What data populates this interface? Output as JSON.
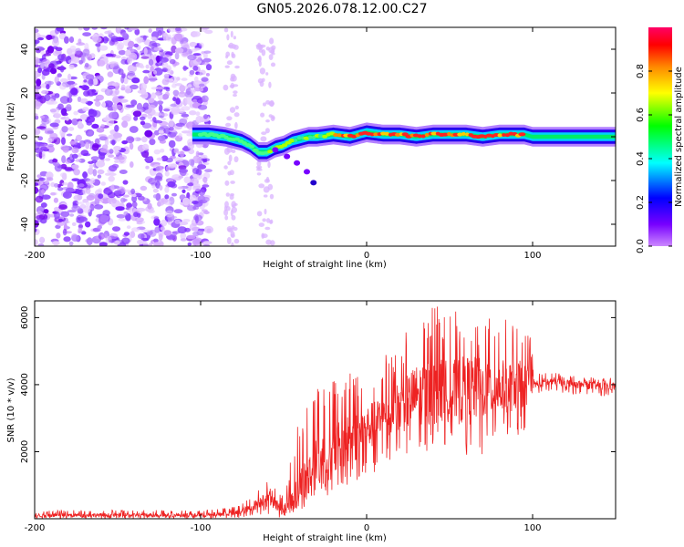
{
  "figure_title": "GN05.2026.078.12.00.C27",
  "chart_data": [
    {
      "type": "heatmap",
      "title": "GN05.2026.078.12.00.C27",
      "xlabel": "Height of straight line (km)",
      "ylabel": "Frequency (Hz)",
      "xlim": [
        -200,
        150
      ],
      "ylim": [
        -50,
        50
      ],
      "xticks": [
        -200,
        -100,
        0,
        100
      ],
      "xtick_labels": [
        "-200",
        "-100",
        "0",
        "100"
      ],
      "yticks": [
        -40,
        -20,
        0,
        20,
        40
      ],
      "ytick_labels": [
        "-40",
        "-20",
        "0",
        "20",
        "40"
      ],
      "grid": false,
      "colorbar": {
        "label": "Normalized spectral amplitude",
        "range": [
          0,
          1
        ],
        "ticks": [
          0.0,
          0.2,
          0.4,
          0.6,
          0.8
        ],
        "tick_labels": [
          "0.0",
          "0.2",
          "0.4",
          "0.6",
          "0.8"
        ],
        "colormap": "hsv-reversed",
        "colors": [
          "#cc88ff",
          "#7700ff",
          "#0000ff",
          "#00ffff",
          "#00ff00",
          "#ffff00",
          "#ff8800",
          "#ff0000",
          "#ff0066"
        ]
      },
      "ridge": {
        "description": "dominant frequency track",
        "x": [
          -105,
          -95,
          -85,
          -75,
          -70,
          -65,
          -60,
          -55,
          -50,
          -45,
          -40,
          -35,
          -30,
          -20,
          -10,
          0,
          10,
          20,
          30,
          40,
          50,
          60,
          70,
          80,
          90,
          95,
          100,
          150
        ],
        "y": [
          1,
          1,
          0,
          -2,
          -4,
          -7,
          -7,
          -5,
          -4,
          -2,
          -1,
          0,
          0,
          1,
          0,
          2,
          1,
          1,
          0,
          1,
          1,
          1,
          0,
          1,
          1,
          1,
          0,
          0
        ]
      },
      "noise_region_x": [
        -200,
        -95
      ]
    },
    {
      "type": "line",
      "title": "",
      "xlabel": "Height of straight line (km)",
      "ylabel": "SNR (10 * v/v)",
      "xlim": [
        -200,
        150
      ],
      "ylim": [
        0,
        6500
      ],
      "xticks": [
        -200,
        -100,
        0,
        100
      ],
      "xtick_labels": [
        "-200",
        "-100",
        "0",
        "100"
      ],
      "yticks": [
        2000,
        4000,
        6000
      ],
      "ytick_labels": [
        "2000",
        "4000",
        "6000"
      ],
      "grid": false,
      "series": [
        {
          "name": "SNR",
          "color": "#ee2222",
          "envelope": {
            "x": [
              -200,
              -150,
              -100,
              -80,
              -70,
              -60,
              -55,
              -50,
              -40,
              -30,
              -20,
              -10,
              0,
              10,
              20,
              30,
              40,
              50,
              60,
              70,
              80,
              90,
              99,
              101,
              110,
              120,
              130,
              140,
              150
            ],
            "mean": [
              100,
              110,
              110,
              160,
              300,
              700,
              450,
              250,
              900,
              1600,
              2000,
              2300,
              2700,
              3000,
              3300,
              3700,
              3800,
              3800,
              3800,
              3900,
              3900,
              4000,
              4000,
              4000,
              4100,
              4050,
              4000,
              3950,
              3950
            ],
            "max": [
              250,
              260,
              260,
              350,
              600,
              1200,
              900,
              700,
              3200,
              4100,
              4200,
              4600,
              4200,
              4900,
              5300,
              6000,
              6400,
              6300,
              6000,
              5900,
              6100,
              5700,
              5500,
              4300,
              4400,
              4300,
              4250,
              4200,
              4200
            ],
            "min": [
              0,
              0,
              0,
              20,
              40,
              150,
              50,
              20,
              200,
              500,
              800,
              1000,
              1200,
              1600,
              1700,
              2000,
              1900,
              2200,
              1200,
              1800,
              2400,
              2300,
              2900,
              3700,
              3800,
              3750,
              3700,
              3650,
              3650
            ]
          }
        }
      ]
    }
  ]
}
